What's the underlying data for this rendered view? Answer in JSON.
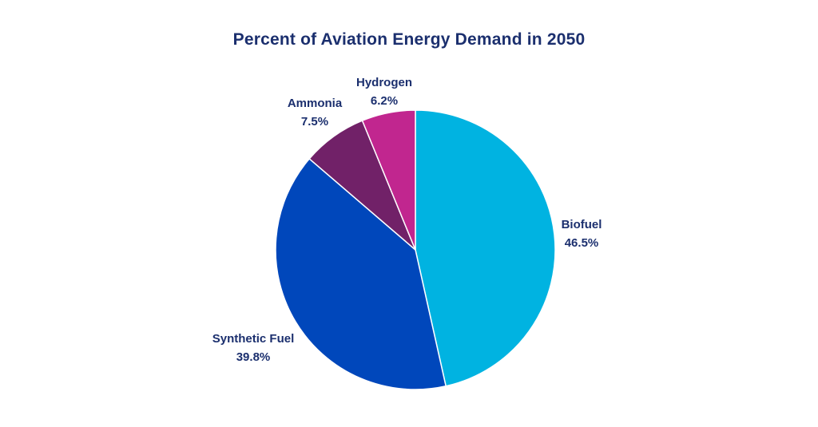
{
  "chart_data": {
    "type": "pie",
    "title": "Percent of Aviation Energy Demand in 2050",
    "start_angle_deg": 0,
    "direction": "clockwise",
    "slices": [
      {
        "label": "Biofuel",
        "value": 46.5,
        "display": "46.5%",
        "color": "#00b3e1"
      },
      {
        "label": "Synthetic Fuel",
        "value": 39.8,
        "display": "39.8%",
        "color": "#0047bb"
      },
      {
        "label": "Ammonia",
        "value": 7.5,
        "display": "7.5%",
        "color": "#712168"
      },
      {
        "label": "Hydrogen",
        "value": 6.2,
        "display": "6.2%",
        "color": "#c1268f"
      }
    ]
  }
}
